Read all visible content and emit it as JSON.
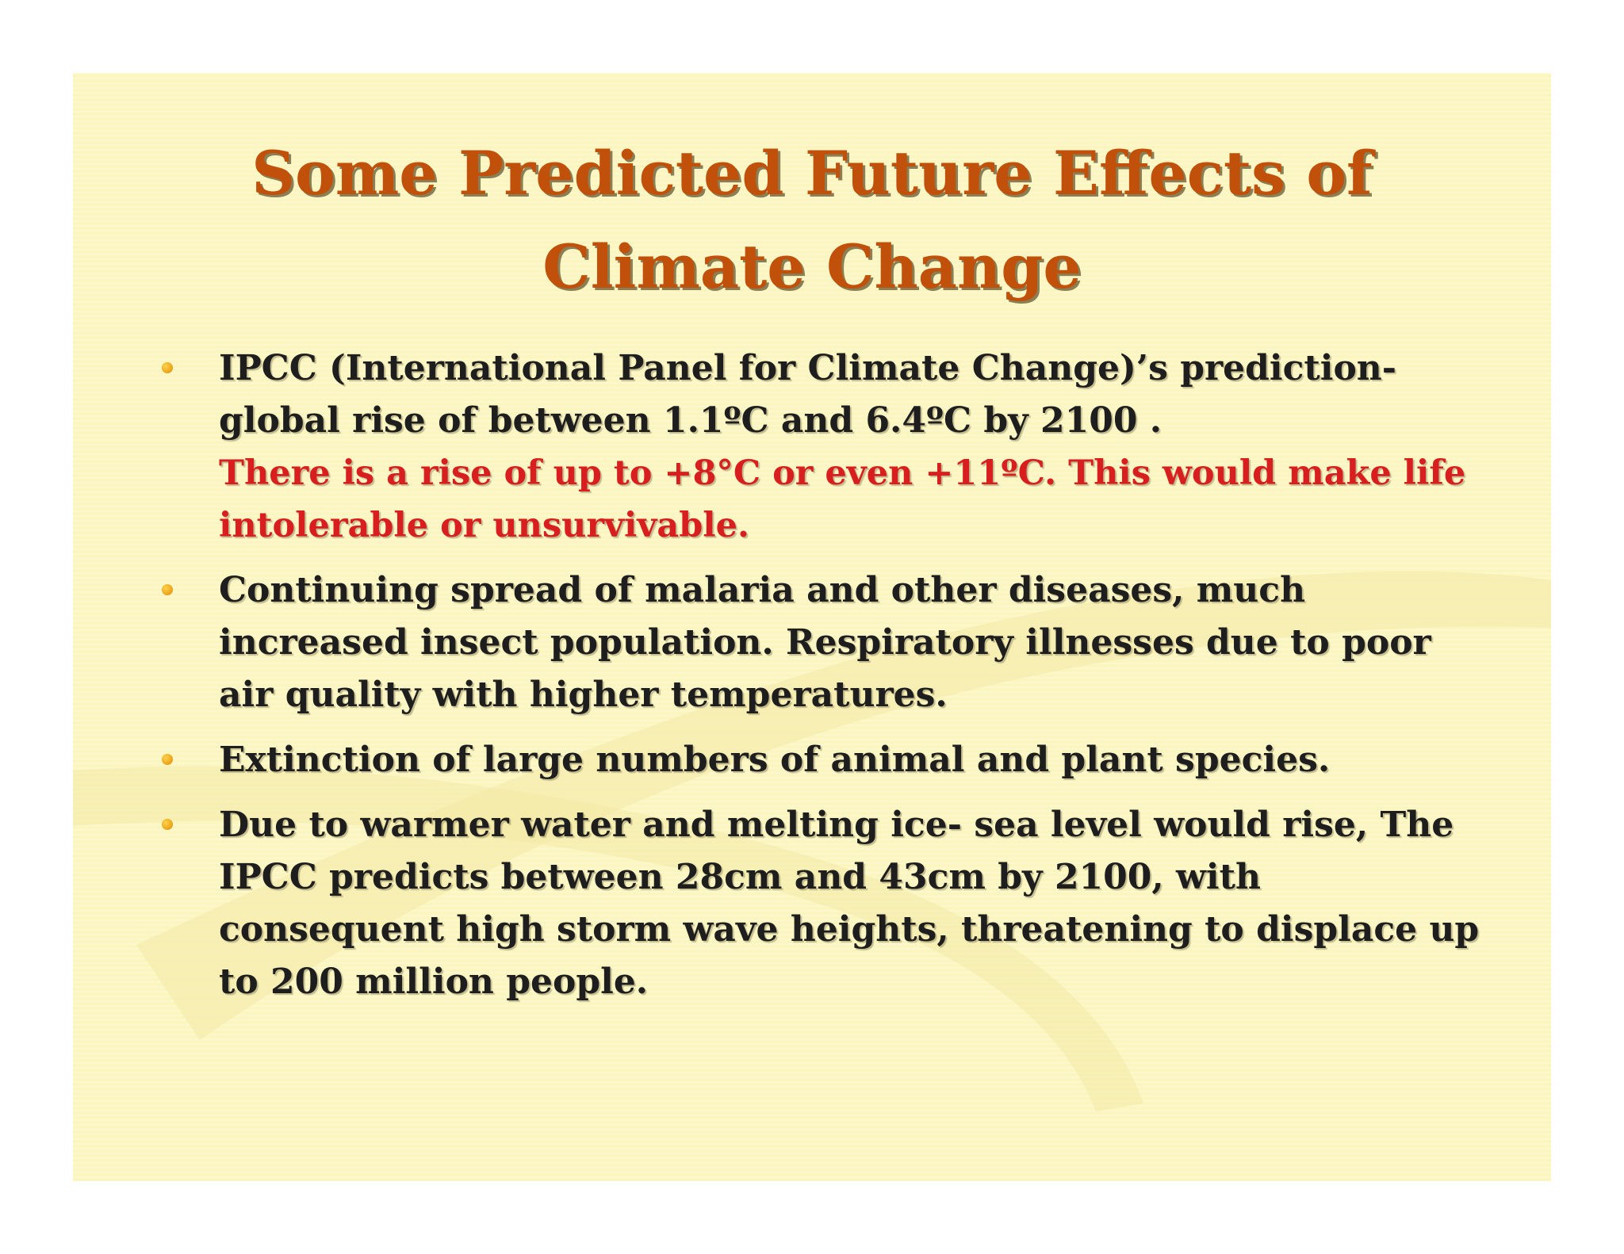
{
  "slide": {
    "title_line1": "Some Predicted Future Effects of",
    "title_line2": "Climate Change",
    "bullets": [
      {
        "text": "IPCC (International Panel for Climate Change)’s prediction-  global rise of between 1.1ºC and 6.4ºC by 2100 .",
        "highlight": "There is a rise of up to +8°C or even +11ºC. This would make life intolerable or unsurvivable."
      },
      {
        "text": "Continuing spread of malaria and other diseases, much increased insect population. Respiratory illnesses due to poor air quality with higher temperatures."
      },
      {
        "text": "Extinction of large numbers of animal and plant species."
      },
      {
        "text": "Due to warmer water and melting ice- sea level would rise, The IPCC predicts between 28cm and 43cm by 2100, with consequent high storm wave heights, threatening to displace up to 200 million people."
      }
    ]
  },
  "colors": {
    "background": "#fbf5bf",
    "title": "#c0500a",
    "body_text": "#1e1e1e",
    "highlight_text": "#d81e1e",
    "bullet": "#f0a000"
  }
}
